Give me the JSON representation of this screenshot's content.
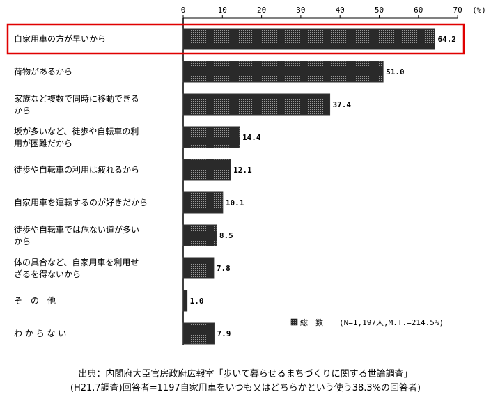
{
  "chart_data": {
    "type": "bar",
    "orientation": "horizontal",
    "unit": "(%)",
    "xlim": [
      0,
      70
    ],
    "ticks": [
      0,
      10,
      20,
      30,
      40,
      50,
      60,
      70
    ],
    "categories": [
      [
        "自家用車の方が早いから"
      ],
      [
        "荷物があるから"
      ],
      [
        "家族など複数で同時に移動できる",
        "から"
      ],
      [
        "坂が多いなど、徒歩や自転車の利",
        "用が困難だから"
      ],
      [
        "徒歩や自転車の利用は疲れるから"
      ],
      [
        "自家用車を運転するのが好きだから"
      ],
      [
        "徒歩や自転車では危ない道が多い",
        "から"
      ],
      [
        "体の具合など、自家用車を利用せ",
        "ざるを得ないから"
      ],
      [
        "そ　の　他"
      ],
      [
        "わ か ら な い"
      ]
    ],
    "series": [
      {
        "name": "総　数",
        "values": [
          64.2,
          51.0,
          37.4,
          14.4,
          12.1,
          10.1,
          8.5,
          7.8,
          1.0,
          7.9
        ]
      }
    ],
    "value_labels": [
      "64.2",
      "51.0",
      "37.4",
      "14.4",
      "12.1",
      "10.1",
      "8.5",
      "7.8",
      "1.0",
      "7.9"
    ],
    "legend": {
      "label": "総　数",
      "note": "(N=1,197人,M.T.=214.5%)",
      "placement": "bottom-right"
    },
    "highlight_index": 0,
    "bar_color": "#333333",
    "highlight_color": "#e00000",
    "grid": false
  },
  "source": {
    "line1": "出典：内閣府大臣官房政府広報室「歩いて暮らせるまちづくりに関する世論調査」",
    "line2": "(H21.7調査)回答者=1197自家用車をいつも又はどちらかという使う38.3%の回答者)"
  }
}
